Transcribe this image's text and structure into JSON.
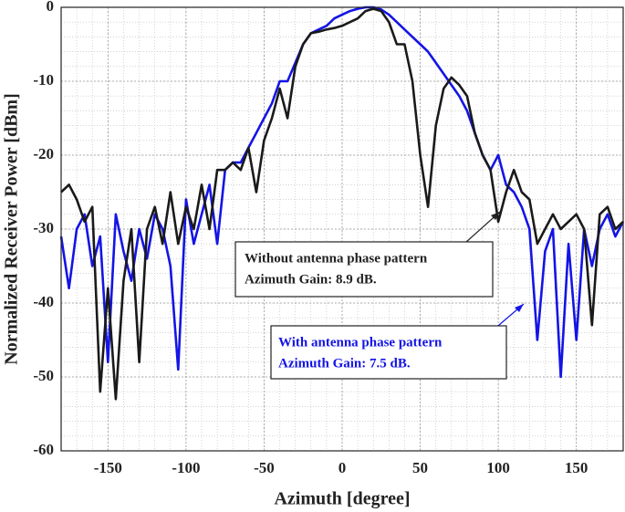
{
  "chart_data": {
    "type": "line",
    "x_label": "Azimuth [degree]",
    "y_label": "Normalized Receiver Power [dBm]",
    "xlim": [
      -180,
      180
    ],
    "xticks": [
      -150,
      -100,
      -50,
      0,
      50,
      100,
      150
    ],
    "ylim": [
      -60,
      0
    ],
    "yticks": [
      -60,
      -50,
      -40,
      -30,
      -20,
      -10,
      0
    ],
    "grid": true,
    "minor_grid": true,
    "x": [
      -180,
      -175,
      -170,
      -165,
      -160,
      -155,
      -150,
      -145,
      -140,
      -135,
      -130,
      -125,
      -120,
      -115,
      -110,
      -105,
      -100,
      -95,
      -90,
      -85,
      -80,
      -75,
      -70,
      -65,
      -60,
      -55,
      -50,
      -45,
      -40,
      -35,
      -30,
      -25,
      -20,
      -15,
      -10,
      -5,
      0,
      5,
      10,
      15,
      20,
      25,
      30,
      35,
      40,
      45,
      50,
      55,
      60,
      65,
      70,
      75,
      80,
      85,
      90,
      95,
      100,
      105,
      110,
      115,
      120,
      125,
      130,
      135,
      140,
      145,
      150,
      155,
      160,
      165,
      170,
      175,
      180
    ],
    "series": [
      {
        "color": "#1414e6",
        "values": [
          -31,
          -38,
          -30,
          -28,
          -35,
          -31,
          -48,
          -28,
          -33,
          -37,
          -30,
          -34,
          -28,
          -30,
          -35,
          -49,
          -26,
          -32,
          -28,
          -24,
          -32,
          -22,
          -21,
          -21,
          -19,
          -17,
          -15,
          -13,
          -10,
          -10,
          -7.5,
          -5,
          -3.5,
          -3,
          -2.5,
          -1.5,
          -1,
          -0.5,
          -0.2,
          0,
          0,
          -0.3,
          -1,
          -2,
          -3,
          -4,
          -5,
          -6,
          -7.5,
          -9,
          -10.5,
          -12,
          -14,
          -17,
          -20,
          -22,
          -20,
          -24,
          -25,
          -27,
          -30,
          -45,
          -33,
          -30,
          -50,
          -32,
          -45,
          -30,
          -35,
          -30,
          -28,
          -31,
          -29
        ]
      },
      {
        "color": "#1a1a1a",
        "values": [
          -25,
          -24,
          -26,
          -29,
          -27,
          -52,
          -38,
          -53,
          -37,
          -30,
          -48,
          -30,
          -27,
          -32,
          -25,
          -32,
          -27,
          -30,
          -24,
          -30,
          -22,
          -22,
          -21,
          -22,
          -19,
          -25,
          -18,
          -15,
          -11,
          -15,
          -8,
          -5,
          -3.5,
          -3.3,
          -3,
          -2.8,
          -2.5,
          -2,
          -1.5,
          -0.5,
          -0.2,
          -0.5,
          -2,
          -5,
          -5,
          -10,
          -20,
          -27,
          -16,
          -11,
          -9.5,
          -10.5,
          -12,
          -17,
          -20,
          -22,
          -29,
          -25,
          -22,
          -25,
          -26,
          -32,
          -30,
          -28,
          -30,
          -29,
          -28,
          -30,
          -43,
          -28,
          -27,
          -30,
          -29
        ]
      }
    ],
    "annotations": [
      {
        "lines": [
          "Without antenna phase pattern",
          "Azimuth Gain: 8.9 dB."
        ]
      },
      {
        "lines": [
          "With antenna phase pattern",
          "Azimuth Gain: 7.5 dB."
        ]
      }
    ]
  }
}
